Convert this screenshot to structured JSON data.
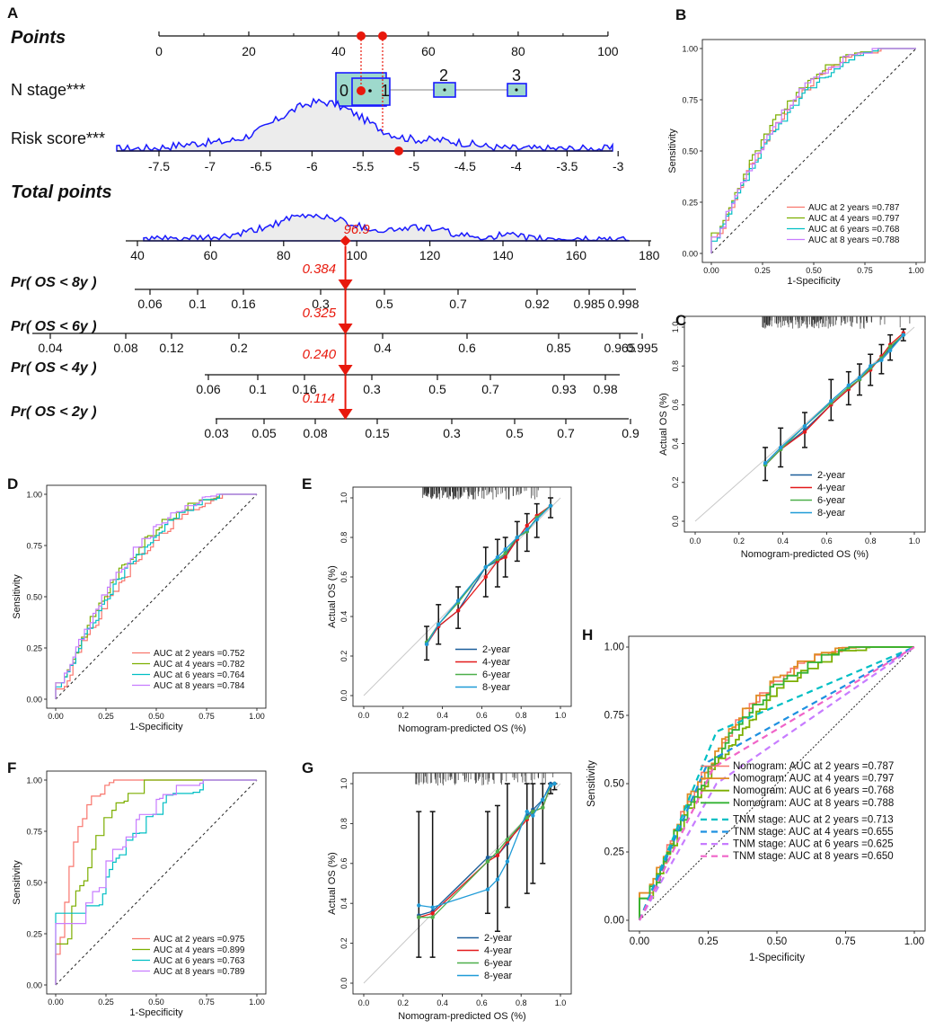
{
  "colors": {
    "curve_blue": "#1a1aff",
    "density_fill": "#ececec",
    "box_fill": "#9ed9cc",
    "marker_red": "#e8180c",
    "roc_2y": "#f8766d",
    "roc_4y": "#7cae00",
    "roc_6y": "#00bfc4",
    "roc_8y": "#c77cff",
    "cal_2y": "#1b5e9a",
    "cal_4y": "#e31a1c",
    "cal_6y": "#4daf4a",
    "cal_8y": "#1f9bd7",
    "H_nomo_2y": "#f8766d",
    "H_nomo_4y": "#e08b24",
    "H_nomo_6y": "#7cae00",
    "H_nomo_8y": "#33b233",
    "H_tnm_2y": "#00bfc4",
    "H_tnm_4y": "#1e90e0",
    "H_tnm_6y": "#c77cff",
    "H_tnm_8y": "#f064c8"
  },
  "panel_labels": [
    "A",
    "B",
    "C",
    "D",
    "E",
    "F",
    "G",
    "H"
  ],
  "chart_data": [
    {
      "panel": "A",
      "type": "nomogram",
      "rows": {
        "points": {
          "label": "Points",
          "ticks": [
            0,
            20,
            40,
            60,
            80,
            100
          ]
        },
        "n_stage": {
          "label": "N stage***",
          "levels": [
            "0",
            "1",
            "2",
            "3"
          ],
          "level_points": [
            42.5,
            50.5,
            63.5,
            80.5
          ],
          "selected": "0"
        },
        "risk_score": {
          "label": "Risk score***",
          "ticks": [
            -7.5,
            -7,
            -6.5,
            -6,
            -5.5,
            -5,
            -4.5,
            -4,
            -3.5,
            -3
          ],
          "marker": -5.15
        },
        "total_points": {
          "label": "Total points",
          "ticks": [
            40,
            60,
            80,
            100,
            120,
            140,
            160,
            180
          ],
          "value": 96.9,
          "value_label": "96.9"
        },
        "probabilities": [
          {
            "label": "Pr( OS < 8y )",
            "ticks": [
              "0.06",
              "0.1",
              "0.16",
              "0.3",
              "0.5",
              "0.7",
              "0.92",
              "0.985",
              "0.998"
            ],
            "value_label": "0.384"
          },
          {
            "label": "Pr( OS < 6y )",
            "ticks": [
              "0.04",
              "0.08",
              "0.12",
              "0.2",
              "0.4",
              "0.6",
              "0.85",
              "0.965",
              "0.995"
            ],
            "value_label": "0.325"
          },
          {
            "label": "Pr( OS < 4y )",
            "ticks": [
              "0.06",
              "0.1",
              "0.16",
              "0.3",
              "0.5",
              "0.7",
              "0.93",
              "0.98"
            ],
            "value_label": "0.240"
          },
          {
            "label": "Pr( OS < 2y )",
            "ticks": [
              "0.03",
              "0.05",
              "0.08",
              "0.15",
              "0.3",
              "0.5",
              "0.7",
              "0.9"
            ],
            "value_label": "0.114"
          }
        ]
      }
    },
    {
      "panel": "B",
      "type": "roc",
      "xlabel": "1-Specificity",
      "ylabel": "Sensitivity",
      "ticks": [
        "0.00",
        "0.25",
        "0.50",
        "0.75",
        "1.00"
      ],
      "legend": [
        "AUC at 2 years =0.787",
        "AUC at 4 years =0.797",
        "AUC at 6 years =0.768",
        "AUC at 8 years =0.788"
      ],
      "auc": [
        0.787,
        0.797,
        0.768,
        0.788
      ]
    },
    {
      "panel": "C",
      "type": "calibration",
      "xlabel": "Nomogram-predicted OS (%)",
      "ylabel": "Actual OS (%)",
      "xticks": [
        "0.0",
        "0.2",
        "0.4",
        "0.6",
        "0.8",
        "1.0"
      ],
      "yticks": [
        "0.0",
        "0.2",
        "0.4",
        "0.6",
        "0.8",
        "1.0"
      ],
      "legend": [
        "2-year",
        "4-year",
        "6-year",
        "8-year"
      ],
      "series": [
        {
          "name": "2-year",
          "x": [
            0.32,
            0.39,
            0.5,
            0.62,
            0.7,
            0.75,
            0.8,
            0.85,
            0.89,
            0.95
          ],
          "y": [
            0.29,
            0.37,
            0.47,
            0.6,
            0.68,
            0.73,
            0.79,
            0.84,
            0.89,
            0.96
          ]
        },
        {
          "name": "4-year",
          "x": [
            0.32,
            0.39,
            0.5,
            0.62,
            0.7,
            0.75,
            0.8,
            0.85,
            0.89,
            0.95
          ],
          "y": [
            0.29,
            0.37,
            0.46,
            0.6,
            0.68,
            0.73,
            0.78,
            0.85,
            0.91,
            0.97
          ]
        },
        {
          "name": "6-year",
          "x": [
            0.32,
            0.39,
            0.5,
            0.62,
            0.7,
            0.75,
            0.8,
            0.85,
            0.89,
            0.95
          ],
          "y": [
            0.29,
            0.37,
            0.49,
            0.61,
            0.69,
            0.73,
            0.79,
            0.84,
            0.9,
            0.96
          ]
        },
        {
          "name": "8-year",
          "x": [
            0.32,
            0.39,
            0.5,
            0.62,
            0.7,
            0.75,
            0.8,
            0.85,
            0.89,
            0.95
          ],
          "y": [
            0.3,
            0.38,
            0.49,
            0.62,
            0.7,
            0.74,
            0.8,
            0.83,
            0.88,
            0.96
          ]
        }
      ],
      "error_bars": [
        [
          0.21,
          0.38
        ],
        [
          0.28,
          0.48
        ],
        [
          0.38,
          0.56
        ],
        [
          0.52,
          0.73
        ],
        [
          0.6,
          0.77
        ],
        [
          0.65,
          0.81
        ],
        [
          0.7,
          0.86
        ],
        [
          0.76,
          0.91
        ],
        [
          0.83,
          0.96
        ],
        [
          0.93,
          0.99
        ]
      ]
    },
    {
      "panel": "D",
      "type": "roc",
      "xlabel": "1-Specificity",
      "ylabel": "Sensitivity",
      "ticks": [
        "0.00",
        "0.25",
        "0.50",
        "0.75",
        "1.00"
      ],
      "legend": [
        "AUC at 2 years =0.752",
        "AUC at 4 years =0.782",
        "AUC at 6 years =0.764",
        "AUC at 8 years =0.784"
      ],
      "auc": [
        0.752,
        0.782,
        0.764,
        0.784
      ]
    },
    {
      "panel": "E",
      "type": "calibration",
      "xlabel": "Nomogram-predicted OS (%)",
      "ylabel": "Actual OS (%)",
      "xticks": [
        "0.0",
        "0.2",
        "0.4",
        "0.6",
        "0.8",
        "1.0"
      ],
      "yticks": [
        "0.0",
        "0.2",
        "0.4",
        "0.6",
        "0.8",
        "1.0"
      ],
      "legend": [
        "2-year",
        "4-year",
        "6-year",
        "8-year"
      ],
      "series": [
        {
          "name": "2-year",
          "x": [
            0.32,
            0.38,
            0.48,
            0.62,
            0.68,
            0.72,
            0.78,
            0.83,
            0.88,
            0.95
          ],
          "y": [
            0.26,
            0.35,
            0.43,
            0.65,
            0.68,
            0.71,
            0.8,
            0.83,
            0.9,
            0.96
          ]
        },
        {
          "name": "4-year",
          "x": [
            0.32,
            0.38,
            0.48,
            0.62,
            0.68,
            0.72,
            0.78,
            0.83,
            0.88,
            0.95
          ],
          "y": [
            0.26,
            0.35,
            0.43,
            0.6,
            0.68,
            0.7,
            0.79,
            0.86,
            0.91,
            0.96
          ]
        },
        {
          "name": "6-year",
          "x": [
            0.32,
            0.38,
            0.48,
            0.62,
            0.68,
            0.72,
            0.78,
            0.83,
            0.88,
            0.95
          ],
          "y": [
            0.27,
            0.36,
            0.47,
            0.65,
            0.69,
            0.72,
            0.8,
            0.83,
            0.9,
            0.96
          ]
        },
        {
          "name": "8-year",
          "x": [
            0.32,
            0.38,
            0.48,
            0.62,
            0.68,
            0.72,
            0.78,
            0.83,
            0.88,
            0.95
          ],
          "y": [
            0.26,
            0.36,
            0.48,
            0.65,
            0.7,
            0.74,
            0.8,
            0.84,
            0.89,
            0.96
          ]
        }
      ],
      "error_bars": [
        [
          0.18,
          0.35
        ],
        [
          0.26,
          0.46
        ],
        [
          0.34,
          0.55
        ],
        [
          0.5,
          0.75
        ],
        [
          0.55,
          0.79
        ],
        [
          0.6,
          0.8
        ],
        [
          0.68,
          0.88
        ],
        [
          0.73,
          0.92
        ],
        [
          0.8,
          0.97
        ],
        [
          0.9,
          1.0
        ]
      ]
    },
    {
      "panel": "F",
      "type": "roc",
      "xlabel": "1-Specificity",
      "ylabel": "Sensitivity",
      "ticks": [
        "0.00",
        "0.25",
        "0.50",
        "0.75",
        "1.00"
      ],
      "legend": [
        "AUC at 2 years =0.975",
        "AUC at 4 years =0.899",
        "AUC at 6 years =0.763",
        "AUC at 8 years =0.789"
      ],
      "auc": [
        0.975,
        0.899,
        0.763,
        0.789
      ]
    },
    {
      "panel": "G",
      "type": "calibration",
      "xlabel": "Nomogram-predicted OS (%)",
      "ylabel": "Actual OS (%)",
      "xticks": [
        "0.0",
        "0.2",
        "0.4",
        "0.6",
        "0.8",
        "1.0"
      ],
      "yticks": [
        "0.0",
        "0.2",
        "0.4",
        "0.6",
        "0.8",
        "1.0"
      ],
      "legend": [
        "2-year",
        "4-year",
        "6-year",
        "8-year"
      ],
      "series": [
        {
          "name": "2-year",
          "x": [
            0.28,
            0.35,
            0.63,
            0.68,
            0.73,
            0.83,
            0.86,
            0.91,
            0.95,
            0.97
          ],
          "y": [
            0.34,
            0.36,
            0.63,
            0.64,
            0.7,
            0.84,
            0.87,
            0.92,
            1.0,
            1.0
          ]
        },
        {
          "name": "4-year",
          "x": [
            0.28,
            0.35,
            0.63,
            0.68,
            0.73,
            0.83,
            0.86,
            0.91,
            0.95,
            0.97
          ],
          "y": [
            0.33,
            0.35,
            0.61,
            0.64,
            0.71,
            0.82,
            0.86,
            0.88,
            0.99,
            1.0
          ]
        },
        {
          "name": "6-year",
          "x": [
            0.28,
            0.35,
            0.63,
            0.68,
            0.73,
            0.83,
            0.86,
            0.91,
            0.95,
            0.97
          ],
          "y": [
            0.33,
            0.33,
            0.61,
            0.66,
            0.72,
            0.83,
            0.86,
            0.88,
            0.99,
            1.0
          ]
        },
        {
          "name": "8-year",
          "x": [
            0.28,
            0.35,
            0.63,
            0.68,
            0.73,
            0.83,
            0.86,
            0.91,
            0.95,
            0.97
          ],
          "y": [
            0.39,
            0.38,
            0.47,
            0.52,
            0.61,
            0.86,
            0.84,
            0.92,
            0.99,
            1.0
          ]
        }
      ],
      "error_bars": [
        [
          0.13,
          0.86
        ],
        [
          0.13,
          0.86
        ],
        [
          0.35,
          0.86
        ],
        [
          0.26,
          0.89
        ],
        [
          0.38,
          1.0
        ],
        [
          0.45,
          1.0
        ],
        [
          0.5,
          1.0
        ],
        [
          0.6,
          1.0
        ],
        [
          0.95,
          1.0
        ],
        [
          0.97,
          1.0
        ]
      ]
    },
    {
      "panel": "H",
      "type": "roc",
      "xlabel": "1-Specificity",
      "ylabel": "Sensitivity",
      "ticks": [
        "0.00",
        "0.25",
        "0.50",
        "0.75",
        "1.00"
      ],
      "legend": [
        "Nomogram: AUC at 2 years =0.787",
        "Nomogram: AUC at 4 years =0.797",
        "Nomogram: AUC at 6 years =0.768",
        "Nomogram: AUC at  8 years =0.788",
        "TNM stage: AUC at 2 years =0.713",
        "TNM stage: AUC at 4 years =0.655",
        "TNM stage: AUC at 6 years =0.625",
        "TNM stage: AUC at  8 years =0.650"
      ],
      "tnm_points": [
        [
          0.28,
          0.69
        ],
        [
          0.25,
          0.58
        ],
        [
          0.28,
          0.5
        ],
        [
          0.27,
          0.56
        ]
      ]
    }
  ]
}
